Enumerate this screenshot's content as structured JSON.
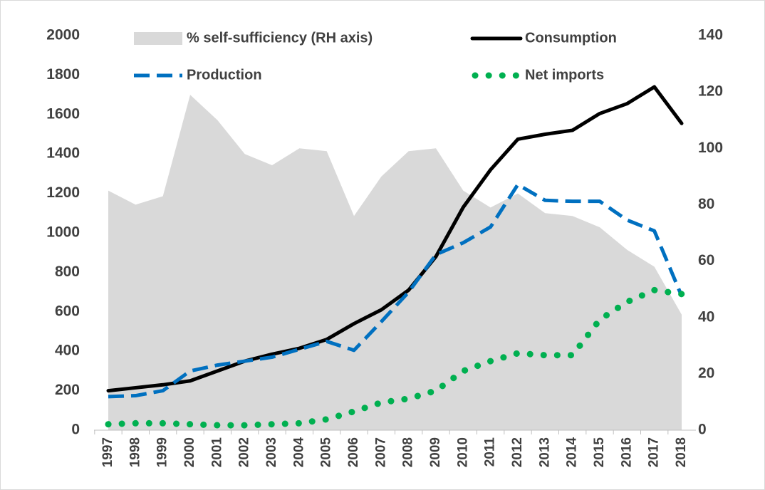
{
  "chart_data": {
    "type": "line",
    "categories": [
      "1997",
      "1998",
      "1999",
      "2000",
      "2001",
      "2002",
      "2003",
      "2004",
      "2005",
      "2006",
      "2007",
      "2008",
      "2009",
      "2010",
      "2011",
      "2012",
      "2013",
      "2014",
      "2015",
      "2016",
      "2017",
      "2018"
    ],
    "series": [
      {
        "name": "% self-sufficiency (RH axis)",
        "color": "#d9d9d9",
        "style": "area",
        "axis": "y2",
        "values": [
          85,
          80,
          83,
          119,
          110,
          98,
          94,
          100,
          99,
          76,
          90,
          99,
          100,
          85,
          79,
          84,
          77,
          76,
          72,
          64,
          58,
          41
        ]
      },
      {
        "name": "Consumption",
        "color": "#000000",
        "style": "solid",
        "values": [
          200,
          215,
          230,
          250,
          300,
          350,
          385,
          415,
          460,
          540,
          610,
          710,
          880,
          1130,
          1320,
          1475,
          1500,
          1520,
          1605,
          1655,
          1740,
          1555
        ]
      },
      {
        "name": "Production",
        "color": "#0070c0",
        "style": "dashed",
        "values": [
          170,
          175,
          200,
          300,
          330,
          350,
          370,
          410,
          450,
          405,
          550,
          700,
          890,
          950,
          1030,
          1245,
          1165,
          1160,
          1160,
          1065,
          1010,
          680
        ]
      },
      {
        "name": "Net imports",
        "color": "#00b050",
        "style": "dotted",
        "values": [
          30,
          35,
          35,
          30,
          25,
          25,
          30,
          35,
          55,
          95,
          140,
          160,
          200,
          300,
          350,
          390,
          380,
          380,
          560,
          650,
          710,
          690
        ]
      }
    ],
    "ylim": [
      0,
      2000
    ],
    "yticks": [
      0,
      200,
      400,
      600,
      800,
      1000,
      1200,
      1400,
      1600,
      1800,
      2000
    ],
    "y2lim": [
      0,
      140
    ],
    "y2ticks": [
      0,
      20,
      40,
      60,
      80,
      100,
      120,
      140
    ]
  }
}
